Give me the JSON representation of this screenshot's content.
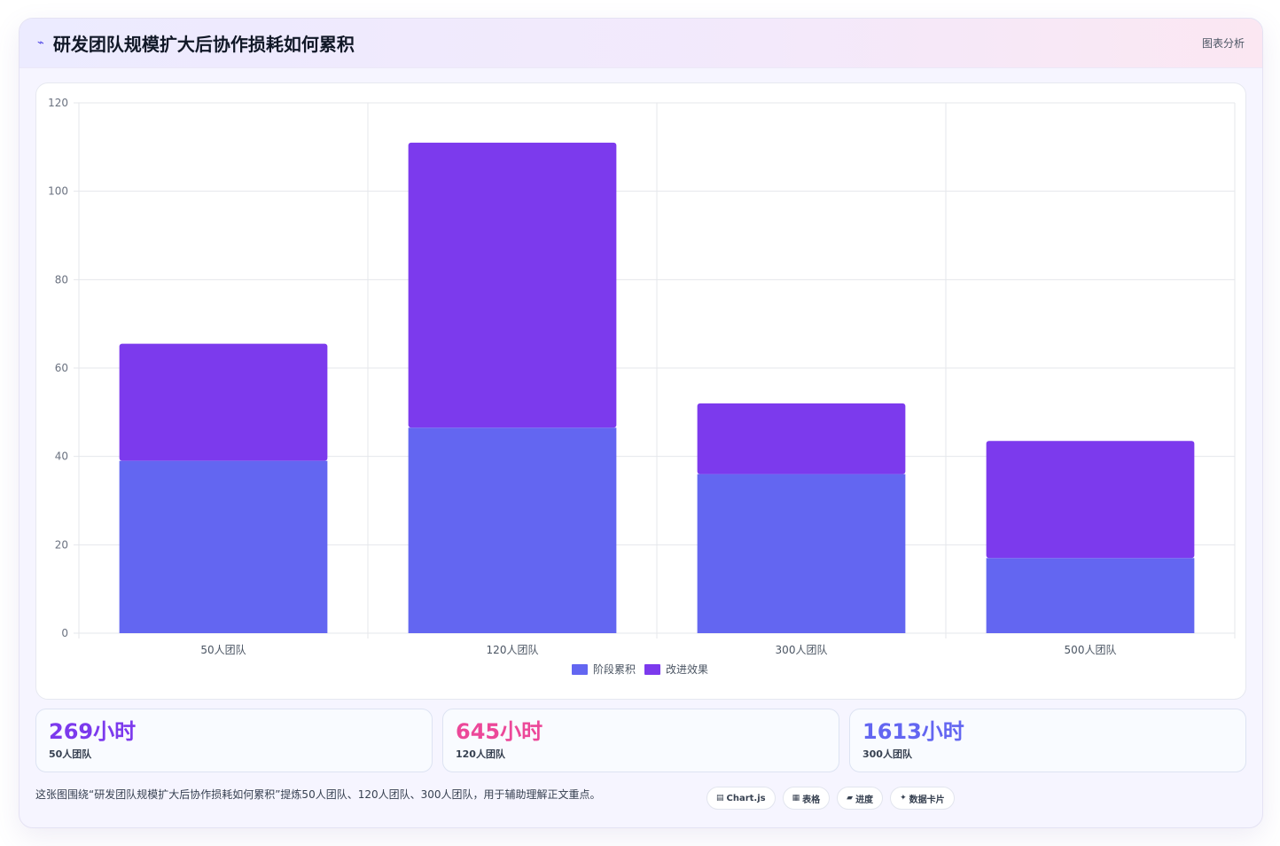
{
  "header": {
    "icon": "trend-icon",
    "title": "研发团队规模扩大后协作损耗如何累积",
    "tag": "图表分析"
  },
  "chart_data": {
    "type": "bar",
    "stacked": true,
    "categories": [
      "50人团队",
      "120人团队",
      "300人团队",
      "500人团队"
    ],
    "series": [
      {
        "name": "阶段累积",
        "color": "#6366f1",
        "values": [
          39,
          46.5,
          36,
          17
        ]
      },
      {
        "name": "改进效果",
        "color": "#7c3aed",
        "values": [
          26.5,
          64.5,
          16,
          26.5
        ]
      }
    ],
    "ylim": [
      0,
      120
    ],
    "yticks": [
      0,
      20,
      40,
      60,
      80,
      100,
      120
    ],
    "grid": true,
    "legend_position": "bottom"
  },
  "stats": [
    {
      "value": "269小时",
      "label": "50人团队",
      "color": "#7c3aed"
    },
    {
      "value": "645小时",
      "label": "120人团队",
      "color": "#ec4899"
    },
    {
      "value": "1613小时",
      "label": "300人团队",
      "color": "#6366f1"
    }
  ],
  "footer": {
    "note": "这张图围绕“研发团队规模扩大后协作损耗如何累积”提炼50人团队、120人团队、300人团队，用于辅助理解正文重点。",
    "chips": [
      {
        "icon": "chart-icon",
        "glyph": "▤",
        "label": "Chart.js"
      },
      {
        "icon": "table-icon",
        "glyph": "▦",
        "label": "表格"
      },
      {
        "icon": "progress-icon",
        "glyph": "▰",
        "label": "进度"
      },
      {
        "icon": "sparkle-icon",
        "glyph": "✦",
        "label": "数据卡片"
      }
    ]
  }
}
